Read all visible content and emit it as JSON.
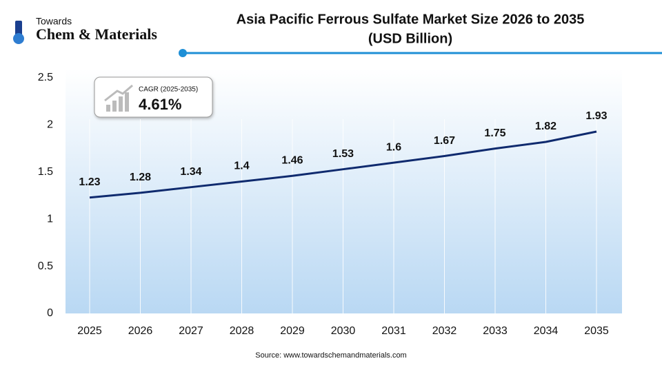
{
  "logo": {
    "top": "Towards",
    "name": "Chem & Materials"
  },
  "chart_data": {
    "type": "line",
    "title": "Asia Pacific Ferrous Sulfate Market Size 2026 to 2035",
    "subtitle": "(USD Billion)",
    "categories": [
      "2025",
      "2026",
      "2027",
      "2028",
      "2029",
      "2030",
      "2031",
      "2032",
      "2033",
      "2034",
      "2035"
    ],
    "values": [
      1.23,
      1.28,
      1.34,
      1.4,
      1.46,
      1.53,
      1.6,
      1.67,
      1.75,
      1.82,
      1.93
    ],
    "color": "#0f2a6e",
    "ylim": [
      0,
      2.5
    ],
    "yticks": [
      0,
      0.5,
      1,
      1.5,
      2,
      2.5
    ],
    "grid": true,
    "annotation": {
      "label": "CAGR (2025-2035)",
      "value": "4.61%"
    },
    "source": "Source: www.towardschemandmaterials.com"
  }
}
